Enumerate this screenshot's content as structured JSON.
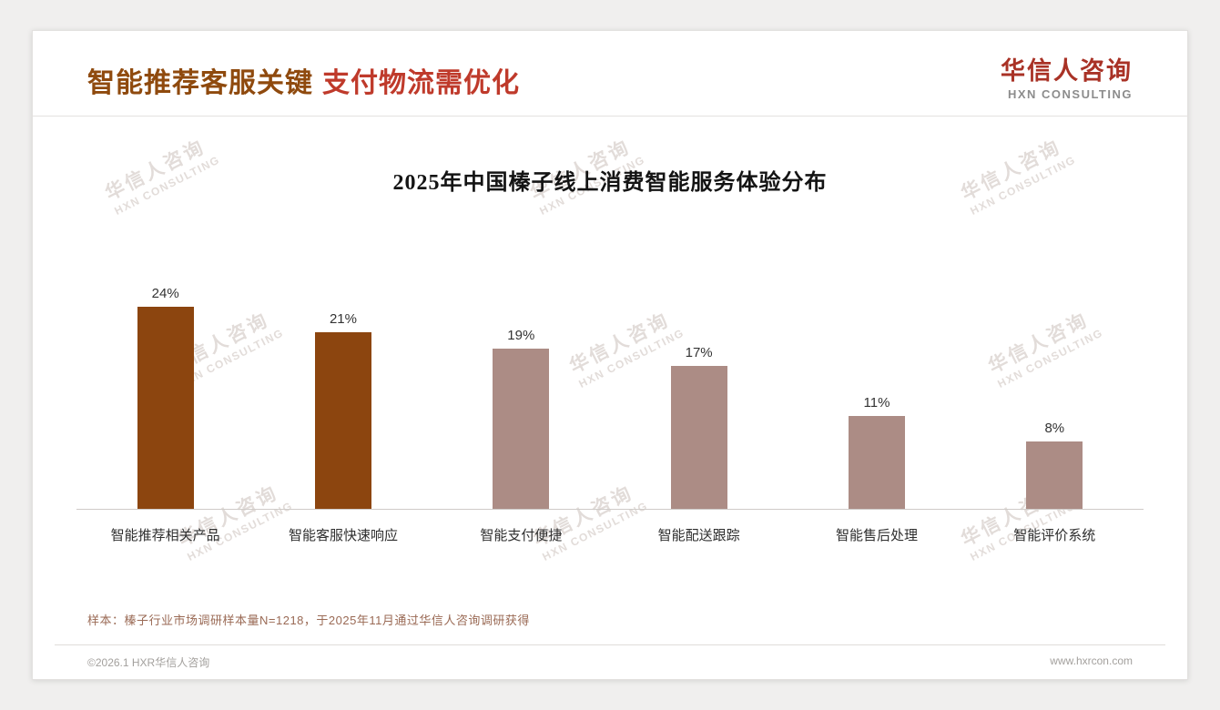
{
  "header": {
    "title_part1": "智能推荐客服关键",
    "title_part2": "支付物流需优化",
    "logo_cn": "华信人咨询",
    "logo_en": "HXN CONSULTING"
  },
  "chart_data": {
    "type": "bar",
    "title": "2025年中国榛子线上消费智能服务体验分布",
    "categories": [
      "智能推荐相关产品",
      "智能客服快速响应",
      "智能支付便捷",
      "智能配送跟踪",
      "智能售后处理",
      "智能评价系统"
    ],
    "values": [
      24,
      21,
      19,
      17,
      11,
      8
    ],
    "value_suffix": "%",
    "bar_colors": [
      "#8C450F",
      "#8C450F",
      "#AC8C85",
      "#AC8C85",
      "#AC8C85",
      "#AC8C85"
    ],
    "xlabel": "",
    "ylabel": "",
    "ylim": [
      0,
      26
    ],
    "grid": false,
    "legend": "none"
  },
  "footnote": "样本：榛子行业市场调研样本量N=1218，于2025年11月通过华信人咨询调研获得",
  "footer": {
    "left": "©2026.1 HXR华信人咨询",
    "right": "www.hxrcon.com"
  },
  "watermark": {
    "line1": "华信人咨询",
    "line2": "HXN CONSULTING"
  },
  "colors": {
    "title_brown": "#8F4A0E",
    "title_red": "#BF3A2B",
    "logo_red": "#A93226",
    "bar_dark": "#8C450F",
    "bar_light": "#AC8C85",
    "footnote_brown": "#9A6A55"
  }
}
